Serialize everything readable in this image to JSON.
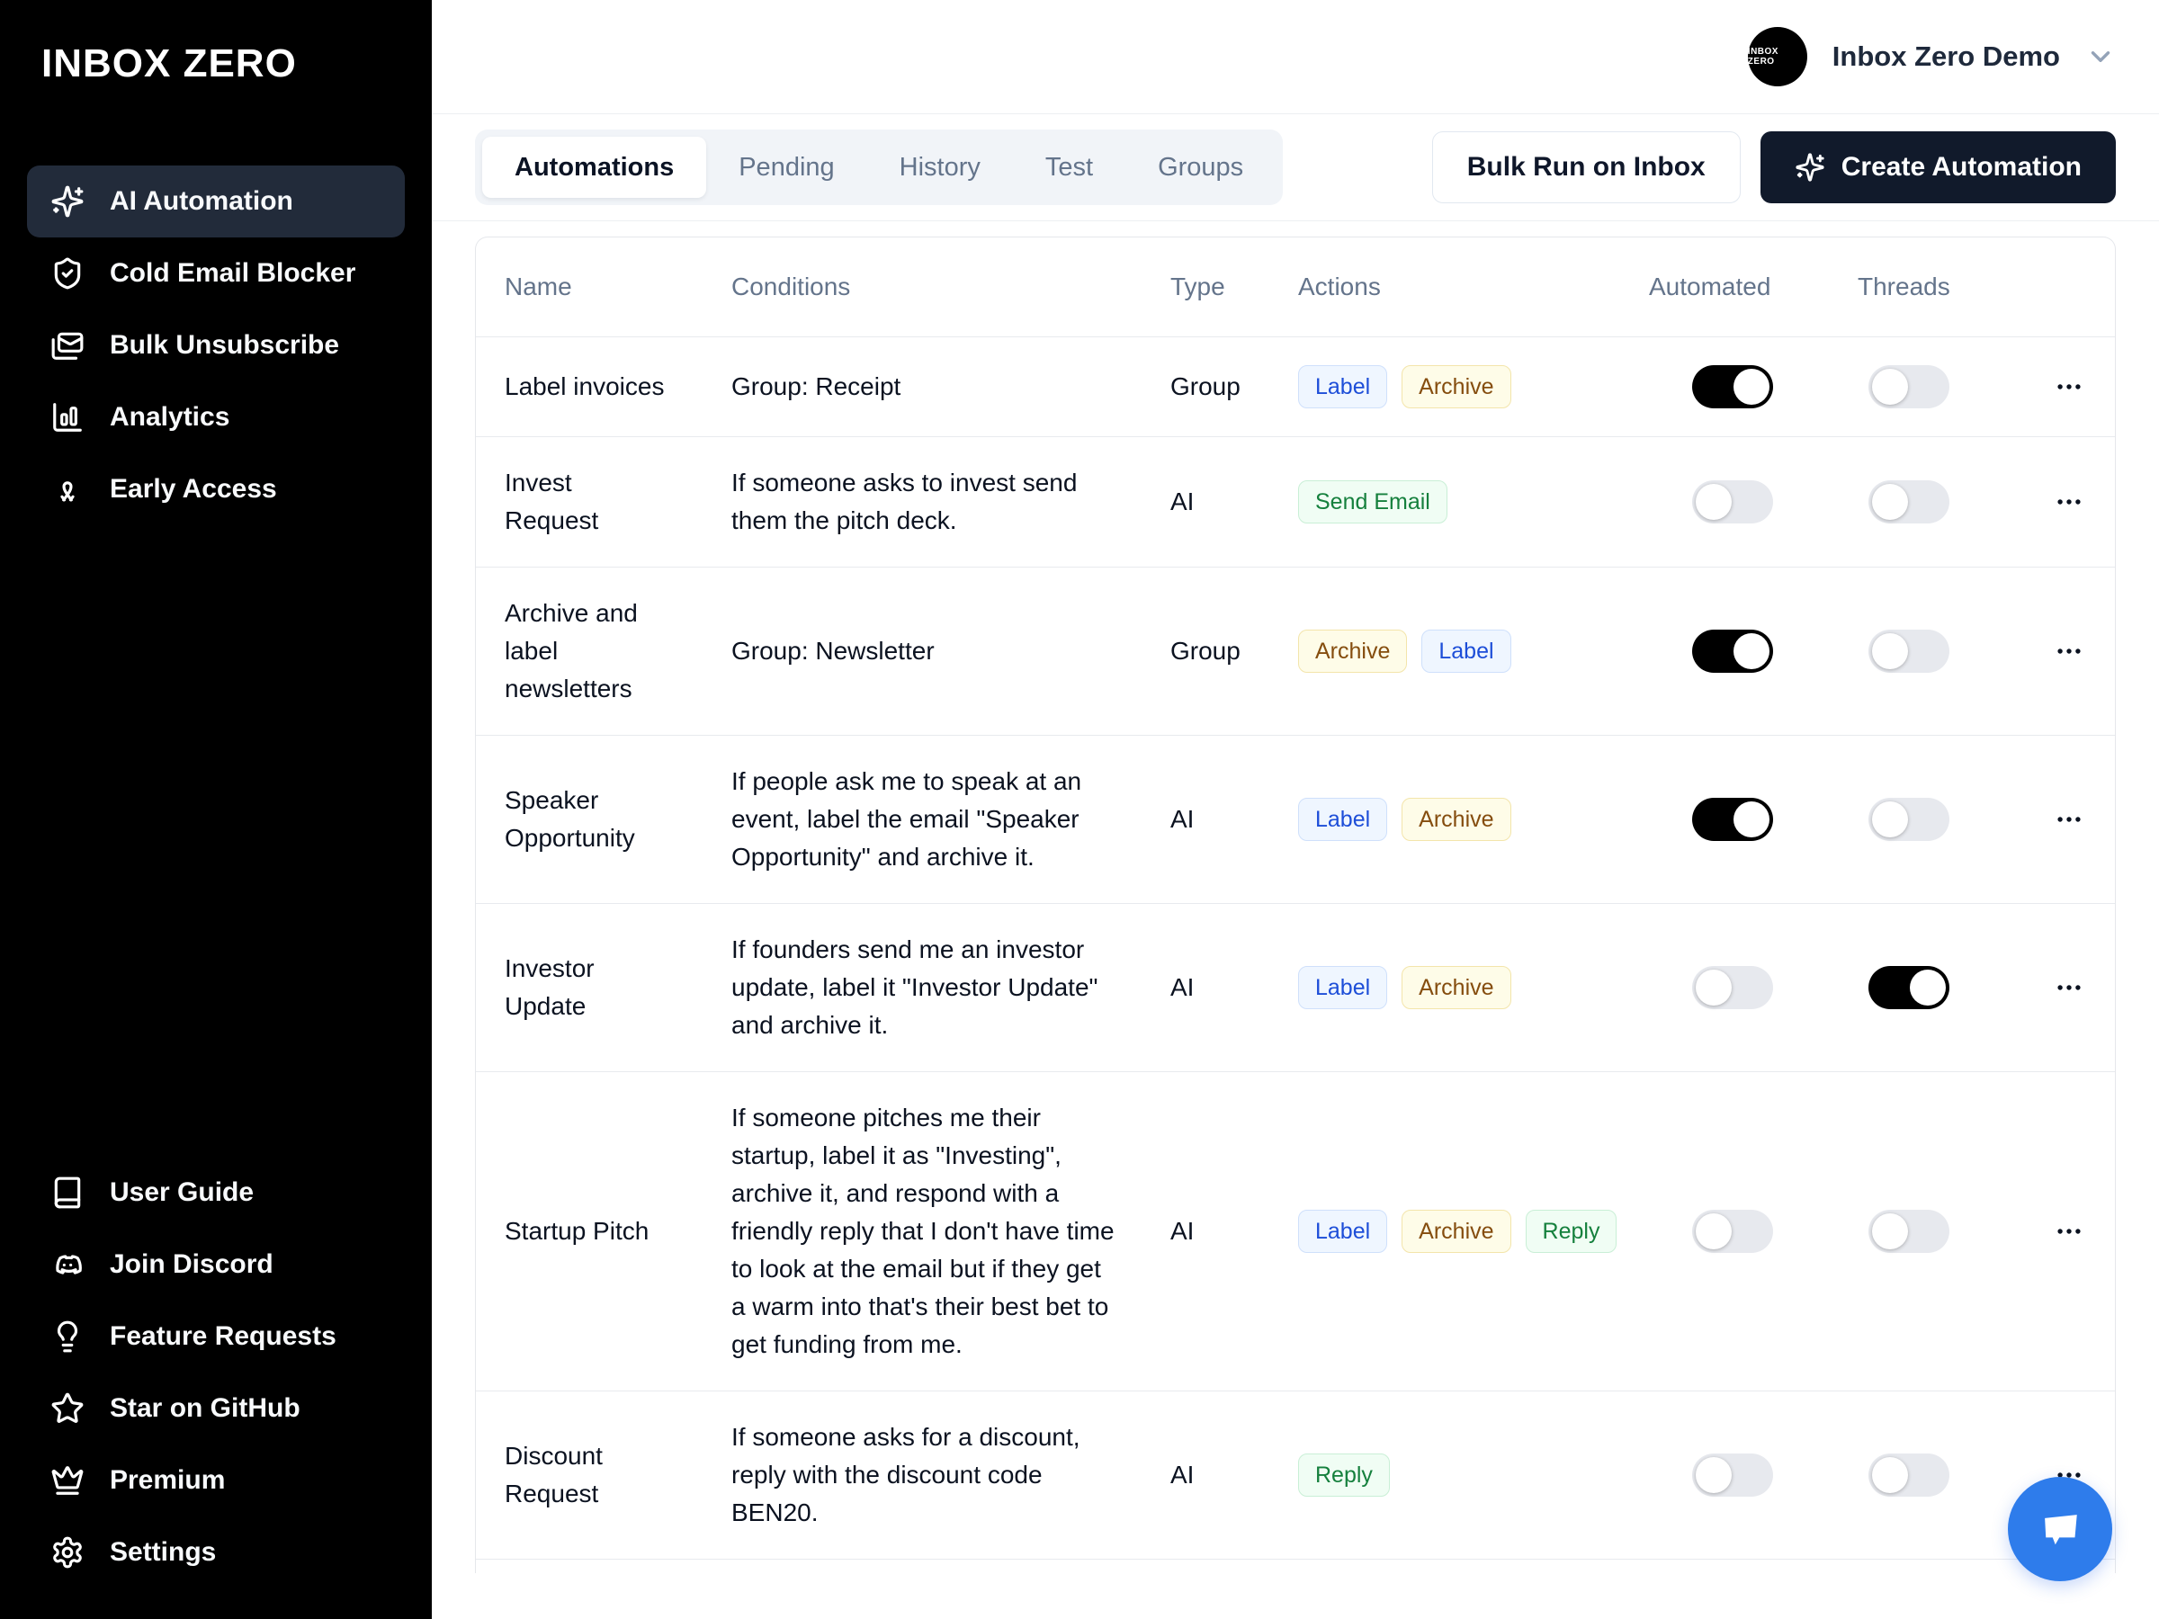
{
  "brand": {
    "logo": "INBOX ZERO"
  },
  "sidebar": {
    "items": [
      {
        "label": "AI Automation",
        "icon": "sparkles-icon",
        "active": true
      },
      {
        "label": "Cold Email Blocker",
        "icon": "shield-check-icon",
        "active": false
      },
      {
        "label": "Bulk Unsubscribe",
        "icon": "mails-icon",
        "active": false
      },
      {
        "label": "Analytics",
        "icon": "bar-chart-icon",
        "active": false
      },
      {
        "label": "Early Access",
        "icon": "ribbon-icon",
        "active": false
      }
    ],
    "footer_items": [
      {
        "label": "User Guide",
        "icon": "book-icon"
      },
      {
        "label": "Join Discord",
        "icon": "discord-icon"
      },
      {
        "label": "Feature Requests",
        "icon": "lightbulb-icon"
      },
      {
        "label": "Star on GitHub",
        "icon": "star-icon"
      },
      {
        "label": "Premium",
        "icon": "crown-icon"
      },
      {
        "label": "Settings",
        "icon": "gear-icon"
      }
    ]
  },
  "header": {
    "account_name": "Inbox Zero Demo",
    "avatar_text": "INBOX ZERO"
  },
  "toolbar": {
    "tabs": [
      {
        "label": "Automations",
        "active": true
      },
      {
        "label": "Pending",
        "active": false
      },
      {
        "label": "History",
        "active": false
      },
      {
        "label": "Test",
        "active": false
      },
      {
        "label": "Groups",
        "active": false
      }
    ],
    "bulk_run_label": "Bulk Run on Inbox",
    "create_label": "Create Automation"
  },
  "table": {
    "columns": [
      "Name",
      "Conditions",
      "Type",
      "Actions",
      "Automated",
      "Threads"
    ],
    "rows": [
      {
        "name": "Label invoices",
        "conditions": "Group: Receipt",
        "type": "Group",
        "actions": [
          {
            "label": "Label",
            "color": "blue"
          },
          {
            "label": "Archive",
            "color": "yellow"
          }
        ],
        "automated": true,
        "threads": false
      },
      {
        "name": "Invest Request",
        "conditions": "If someone asks to invest send them the pitch deck.",
        "type": "AI",
        "actions": [
          {
            "label": "Send Email",
            "color": "green"
          }
        ],
        "automated": false,
        "threads": false
      },
      {
        "name": "Archive and label newsletters",
        "conditions": "Group: Newsletter",
        "type": "Group",
        "actions": [
          {
            "label": "Archive",
            "color": "yellow"
          },
          {
            "label": "Label",
            "color": "blue"
          }
        ],
        "automated": true,
        "threads": false
      },
      {
        "name": "Speaker Opportunity",
        "conditions": "If people ask me to speak at an event, label the email \"Speaker Opportunity\" and archive it.",
        "type": "AI",
        "actions": [
          {
            "label": "Label",
            "color": "blue"
          },
          {
            "label": "Archive",
            "color": "yellow"
          }
        ],
        "automated": true,
        "threads": false
      },
      {
        "name": "Investor Update",
        "conditions": "If founders send me an investor update, label it \"Investor Update\" and archive it.",
        "type": "AI",
        "actions": [
          {
            "label": "Label",
            "color": "blue"
          },
          {
            "label": "Archive",
            "color": "yellow"
          }
        ],
        "automated": false,
        "threads": true
      },
      {
        "name": "Startup Pitch",
        "conditions": "If someone pitches me their startup, label it as \"Investing\", archive it, and respond with a friendly reply that I don't have time to look at the email but if they get a warm into that's their best bet to get funding from me.",
        "type": "AI",
        "actions": [
          {
            "label": "Label",
            "color": "blue"
          },
          {
            "label": "Archive",
            "color": "yellow"
          },
          {
            "label": "Reply",
            "color": "green"
          }
        ],
        "automated": false,
        "threads": false
      },
      {
        "name": "Discount Request",
        "conditions": "If someone asks for a discount, reply with the discount code BEN20.",
        "type": "AI",
        "actions": [
          {
            "label": "Reply",
            "color": "green"
          }
        ],
        "automated": false,
        "threads": false
      }
    ]
  },
  "colors": {
    "sidebar_bg": "#000000",
    "active_item_bg": "#222b3a",
    "dark_button_bg": "#111a2b",
    "chat_bubble": "#2e7ceb",
    "badge_blue_text": "#1d4ed8",
    "badge_yellow_text": "#854d0e",
    "badge_green_text": "#15803d"
  }
}
